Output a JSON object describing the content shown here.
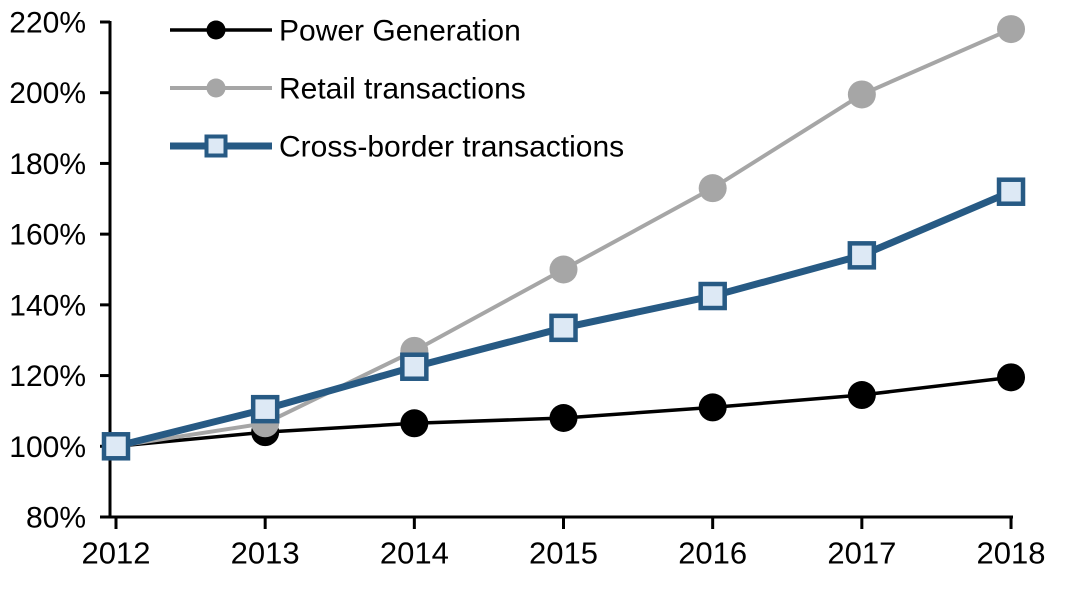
{
  "chart_data": {
    "type": "line",
    "title": "",
    "xlabel": "",
    "ylabel": "",
    "x_labels": [
      "2012",
      "2013",
      "2014",
      "2015",
      "2016",
      "2017",
      "2018"
    ],
    "x_values": [
      2012,
      2013,
      2014,
      2015,
      2016,
      2017,
      2018
    ],
    "ylim": [
      80,
      220
    ],
    "ytick_values": [
      220,
      200,
      180,
      160,
      140,
      120,
      100,
      80
    ],
    "ytick_labels": [
      "220%",
      "200%",
      "180%",
      "160%",
      "140%",
      "120%",
      "100%",
      "80%"
    ],
    "grid": false,
    "legend_position": "top-left-inside",
    "axis_color": "#000000",
    "background_color": "#ffffff",
    "series": [
      {
        "name": "Power Generation",
        "line_color": "#000000",
        "marker": "circle",
        "marker_fill": "#000000",
        "line_width": 3.5,
        "values": [
          100,
          104,
          106.5,
          108,
          111,
          114.5,
          119.5
        ]
      },
      {
        "name": "Retail transactions",
        "line_color": "#a6a6a6",
        "marker": "circle",
        "marker_fill": "#a6a6a6",
        "line_width": 4,
        "values": [
          100,
          106.5,
          127,
          150,
          173,
          199.5,
          218
        ]
      },
      {
        "name": "Cross-border transactions",
        "line_color": "#275a84",
        "marker": "square",
        "marker_fill": "#dde9f5",
        "line_width": 7,
        "values": [
          100,
          110.5,
          122.5,
          133.5,
          142.5,
          154,
          172
        ]
      }
    ]
  }
}
